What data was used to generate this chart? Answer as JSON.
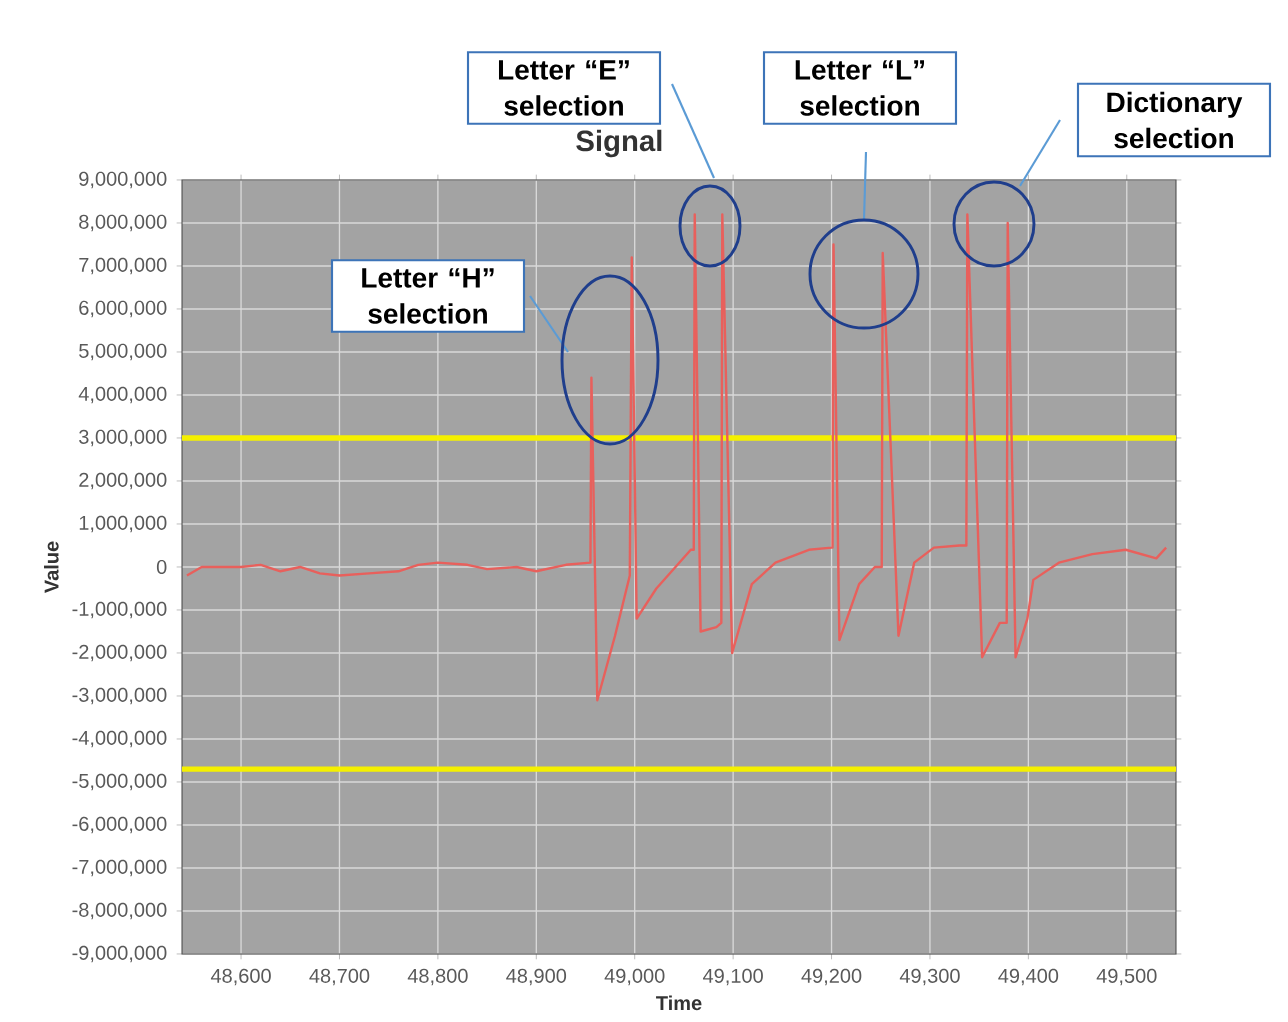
{
  "chart_data": {
    "type": "line",
    "title": "Signal",
    "xlabel": "Time",
    "ylabel": "Value",
    "x": [
      48545,
      48560,
      48600,
      48620,
      48640,
      48660,
      48680,
      48700,
      48730,
      48760,
      48780,
      48800,
      48830,
      48850,
      48880,
      48900,
      48930,
      48955,
      48956,
      48962,
      48980,
      48995,
      48997,
      49002,
      49022,
      49057,
      49060,
      49061,
      49067,
      49083,
      49088,
      49089,
      49099,
      49119,
      49143,
      49177,
      49200,
      49201,
      49202,
      49208,
      49228,
      49244,
      49251,
      49252,
      49268,
      49284,
      49304,
      49330,
      49337,
      49338,
      49353,
      49371,
      49378,
      49379,
      49387,
      49399,
      49405,
      49431,
      49465,
      49499,
      49530,
      49540
    ],
    "series": [
      {
        "color": "#e8605c",
        "values": [
          -200000,
          0,
          0,
          50000,
          -100000,
          0,
          -150000,
          -200000,
          -150000,
          -100000,
          50000,
          100000,
          50000,
          -50000,
          0,
          -100000,
          50000,
          100000,
          4400000,
          -3100000,
          -1600000,
          -200000,
          7200000,
          -1200000,
          -500000,
          400000,
          400000,
          8200000,
          -1500000,
          -1400000,
          -1300000,
          8200000,
          -2000000,
          -400000,
          100000,
          400000,
          450000,
          450000,
          7500000,
          -1700000,
          -400000,
          0,
          0,
          7300000,
          -1600000,
          100000,
          450000,
          500000,
          500000,
          8200000,
          -2100000,
          -1300000,
          -1300000,
          8000000,
          -2100000,
          -1200000,
          -300000,
          100000,
          300000,
          400000,
          200000,
          450000
        ]
      }
    ],
    "xlim": [
      48540,
      49550
    ],
    "ylim": [
      -9000000,
      9000000
    ],
    "xticks": [
      {
        "value": 48600,
        "label": "48,600"
      },
      {
        "value": 48700,
        "label": "48,700"
      },
      {
        "value": 48800,
        "label": "48,800"
      },
      {
        "value": 48900,
        "label": "48,900"
      },
      {
        "value": 49000,
        "label": "49,000"
      },
      {
        "value": 49100,
        "label": "49,100"
      },
      {
        "value": 49200,
        "label": "49,200"
      },
      {
        "value": 49300,
        "label": "49,300"
      },
      {
        "value": 49400,
        "label": "49,400"
      },
      {
        "value": 49500,
        "label": "49,500"
      }
    ],
    "yticks": [
      {
        "value": 9000000,
        "label": "9,000,000"
      },
      {
        "value": 8000000,
        "label": "8,000,000"
      },
      {
        "value": 7000000,
        "label": "7,000,000"
      },
      {
        "value": 6000000,
        "label": "6,000,000"
      },
      {
        "value": 5000000,
        "label": "5,000,000"
      },
      {
        "value": 4000000,
        "label": "4,000,000"
      },
      {
        "value": 3000000,
        "label": "3,000,000"
      },
      {
        "value": 2000000,
        "label": "2,000,000"
      },
      {
        "value": 1000000,
        "label": "1,000,000"
      },
      {
        "value": 0,
        "label": "0"
      },
      {
        "value": -1000000,
        "label": "-1,000,000"
      },
      {
        "value": -2000000,
        "label": "-2,000,000"
      },
      {
        "value": -3000000,
        "label": "-3,000,000"
      },
      {
        "value": -4000000,
        "label": "-4,000,000"
      },
      {
        "value": -5000000,
        "label": "-5,000,000"
      },
      {
        "value": -6000000,
        "label": "-6,000,000"
      },
      {
        "value": -7000000,
        "label": "-7,000,000"
      },
      {
        "value": -8000000,
        "label": "-8,000,000"
      },
      {
        "value": -9000000,
        "label": "-9,000,000"
      }
    ],
    "grid": true,
    "marker": "none",
    "line_style": "solid",
    "ref_lines": [
      {
        "axis": "y",
        "value": 3000000,
        "color": "#f5f000"
      },
      {
        "axis": "y",
        "value": -4700000,
        "color": "#f5f000"
      }
    ],
    "annotations": [
      "Letter “H” selection",
      "Letter “E” selection",
      "Letter “L” selection",
      "Dictionary selection"
    ]
  }
}
